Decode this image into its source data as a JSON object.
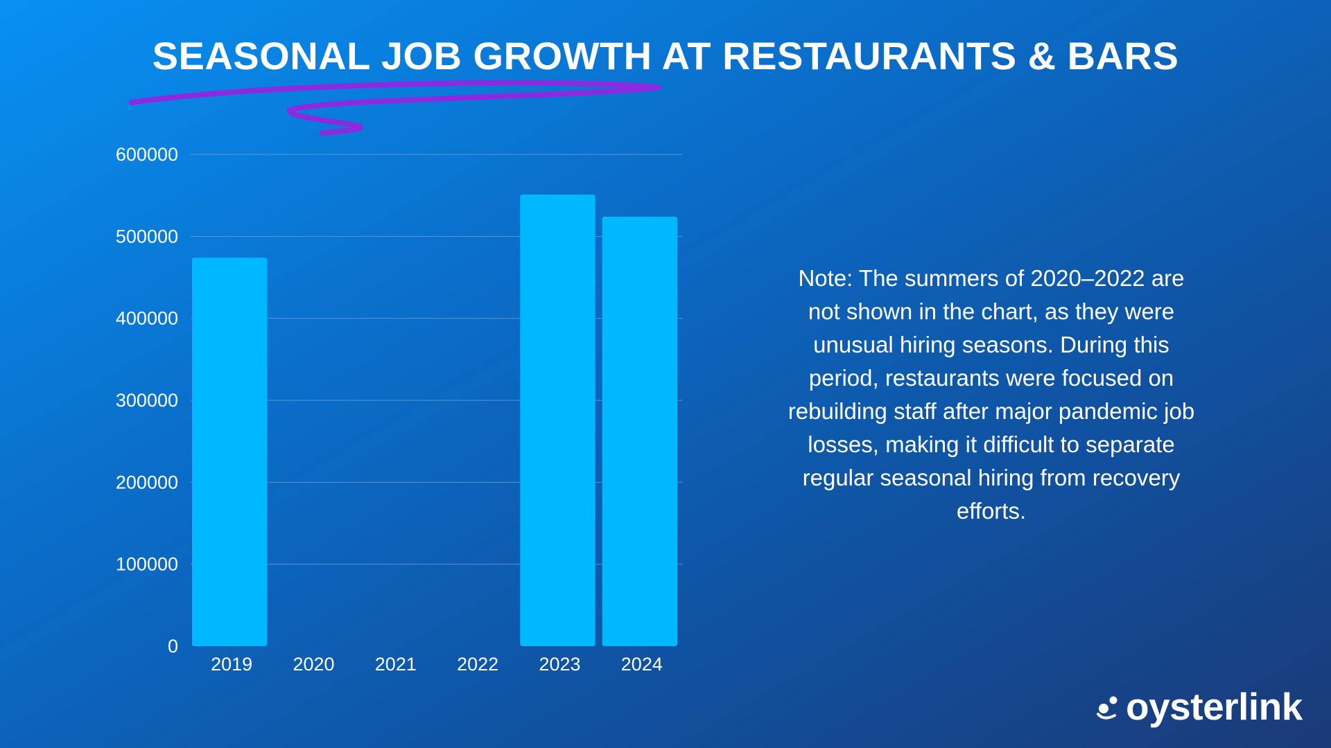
{
  "chart_data": {
    "type": "bar",
    "title": "SEASONAL JOB GROWTH AT RESTAURANTS & BARS",
    "categories": [
      "2019",
      "2020",
      "2021",
      "2022",
      "2023",
      "2024"
    ],
    "values": [
      474000,
      null,
      null,
      null,
      551000,
      524000
    ],
    "y_ticks": [
      0,
      100000,
      200000,
      300000,
      400000,
      500000,
      600000
    ],
    "ylim": [
      0,
      600000
    ],
    "xlabel": "",
    "ylabel": "",
    "grid": true,
    "bar_color": "#00b8ff",
    "grid_color": "#5a95d2"
  },
  "note": {
    "text": "Note: The summers of 2020–2022 are not shown in the chart, as they were unusual hiring seasons. During this period, restaurants were focused on rebuilding staff after major pandemic job losses, making it difficult to separate regular seasonal hiring from recovery efforts."
  },
  "brand": {
    "name": "oysterlink",
    "icon": "oysterlink-logo-icon"
  },
  "colors": {
    "swoosh": "#8a2be2",
    "text": "#ffffff"
  }
}
